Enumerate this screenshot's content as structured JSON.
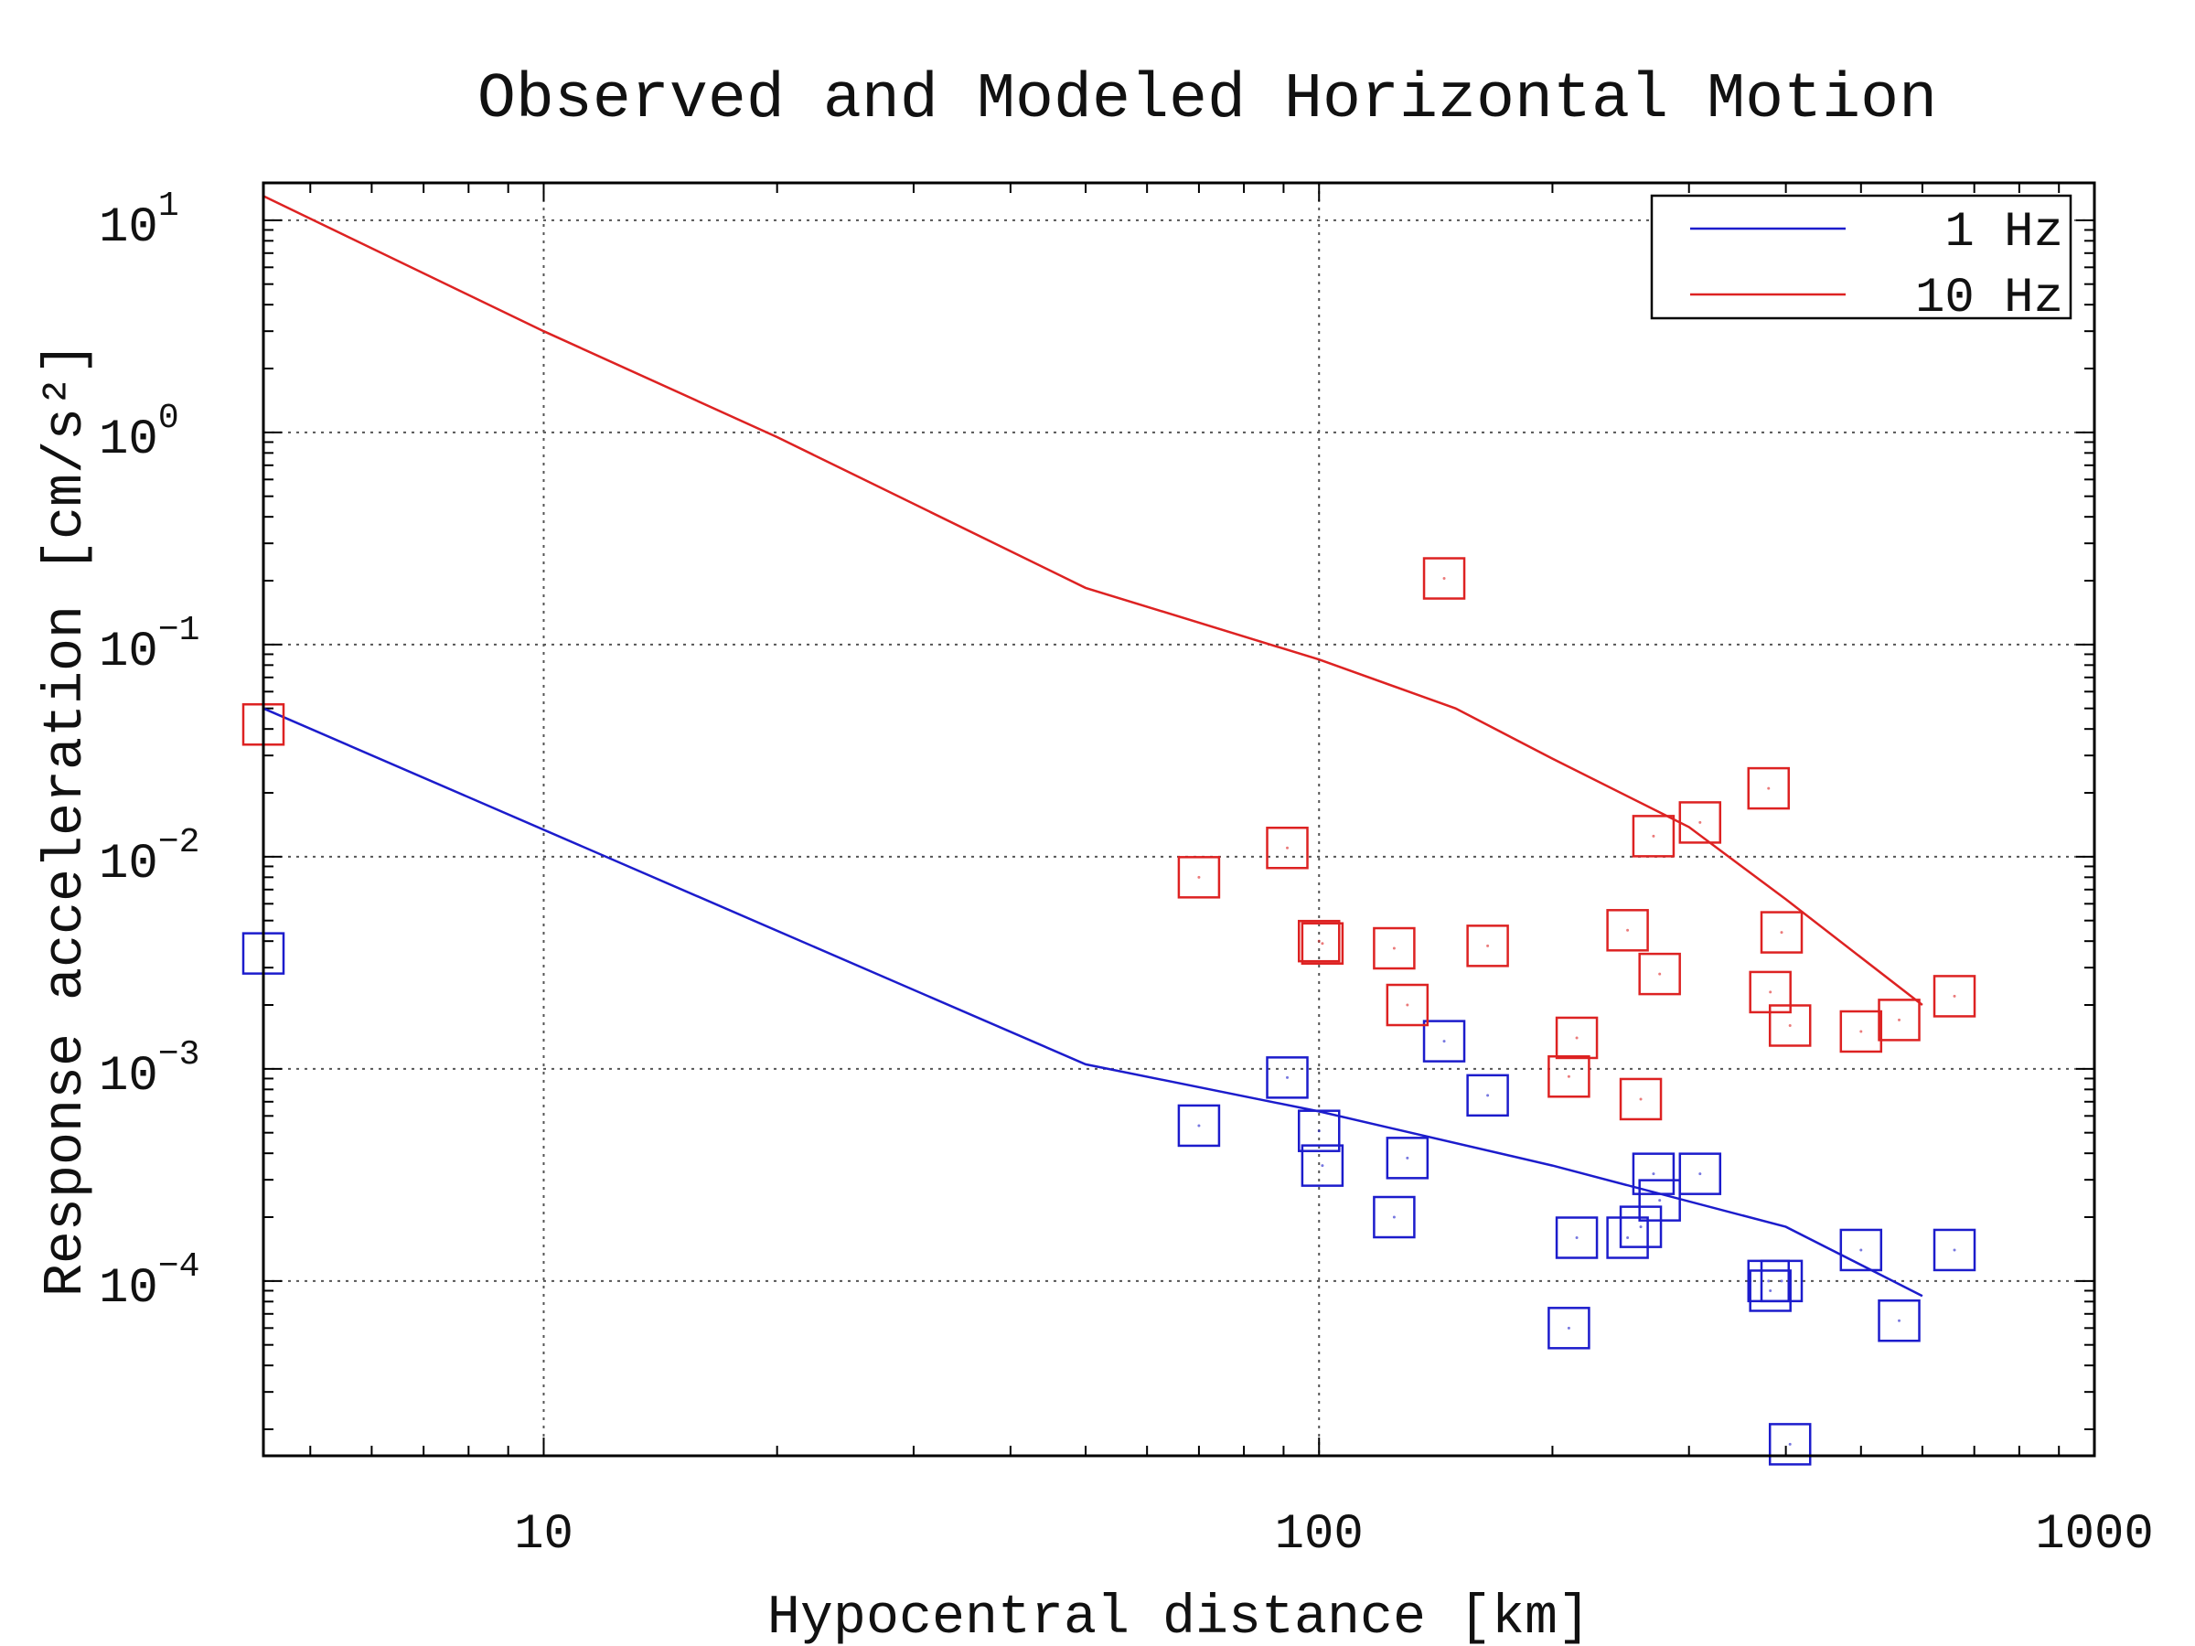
{
  "chart_data": {
    "type": "scatter",
    "title": "Observed and Modeled Horizontal Motion",
    "xlabel": "Hypocentral distance [km]",
    "ylabel": "Response acceleration [cm/s²]",
    "x_scale": "log",
    "y_scale": "log",
    "xlim": [
      4.35,
      1000
    ],
    "ylim": [
      1.5e-05,
      15
    ],
    "x_ticks": [
      {
        "value": 10,
        "label": "10"
      },
      {
        "value": 100,
        "label": "100"
      },
      {
        "value": 1000,
        "label": "1000"
      }
    ],
    "y_ticks": [
      {
        "value": 10,
        "base": "10",
        "exp": "1"
      },
      {
        "value": 1,
        "base": "10",
        "exp": "0"
      },
      {
        "value": 0.1,
        "base": "10",
        "exp": "−1"
      },
      {
        "value": 0.01,
        "base": "10",
        "exp": "−2"
      },
      {
        "value": 0.001,
        "base": "10",
        "exp": "−3"
      },
      {
        "value": 0.0001,
        "base": "10",
        "exp": "−4"
      }
    ],
    "grid": true,
    "legend_position": "top-right",
    "colors": {
      "1 Hz": "#1c1ccc",
      "10 Hz": "#dd2222"
    },
    "series": [
      {
        "name": "1 Hz",
        "color": "#1c1ccc",
        "model": [
          [
            4.35,
            0.05
          ],
          [
            50,
            0.00105
          ],
          [
            100,
            0.00063
          ],
          [
            200,
            0.00035
          ],
          [
            400,
            0.00018
          ],
          [
            600,
            8.5e-05
          ]
        ],
        "observed": [
          [
            4.35,
            0.0035
          ],
          [
            70,
            0.00054
          ],
          [
            91,
            0.00091
          ],
          [
            100,
            0.00051
          ],
          [
            101,
            0.00035
          ],
          [
            125,
            0.0002
          ],
          [
            130,
            0.00038
          ],
          [
            145,
            0.00135
          ],
          [
            165,
            0.00075
          ],
          [
            210,
            6e-05
          ],
          [
            215,
            0.00016
          ],
          [
            250,
            0.00016
          ],
          [
            260,
            0.00018
          ],
          [
            270,
            0.00032
          ],
          [
            275,
            0.00024
          ],
          [
            310,
            0.00032
          ],
          [
            380,
            0.0001
          ],
          [
            382,
            9e-05
          ],
          [
            395,
            0.0001
          ],
          [
            405,
            1.7e-05
          ],
          [
            500,
            0.00014
          ],
          [
            560,
            6.5e-05
          ],
          [
            660,
            0.00014
          ]
        ]
      },
      {
        "name": "10 Hz",
        "color": "#dd2222",
        "model": [
          [
            4.35,
            13
          ],
          [
            10,
            3
          ],
          [
            20,
            0.95
          ],
          [
            50,
            0.185
          ],
          [
            100,
            0.085
          ],
          [
            150,
            0.05
          ],
          [
            200,
            0.029
          ],
          [
            300,
            0.0138
          ],
          [
            400,
            0.0063
          ],
          [
            600,
            0.002
          ]
        ],
        "observed": [
          [
            4.35,
            0.042
          ],
          [
            70,
            0.008
          ],
          [
            91,
            0.011
          ],
          [
            100,
            0.004
          ],
          [
            101,
            0.0039
          ],
          [
            125,
            0.0037
          ],
          [
            130,
            0.002
          ],
          [
            145,
            0.205
          ],
          [
            165,
            0.0038
          ],
          [
            210,
            0.00092
          ],
          [
            215,
            0.0014
          ],
          [
            250,
            0.0045
          ],
          [
            260,
            0.00072
          ],
          [
            270,
            0.0125
          ],
          [
            275,
            0.0028
          ],
          [
            310,
            0.0145
          ],
          [
            380,
            0.021
          ],
          [
            382,
            0.0023
          ],
          [
            395,
            0.0044
          ],
          [
            405,
            0.0016
          ],
          [
            500,
            0.0015
          ],
          [
            560,
            0.0017
          ],
          [
            660,
            0.0022
          ]
        ]
      }
    ]
  }
}
